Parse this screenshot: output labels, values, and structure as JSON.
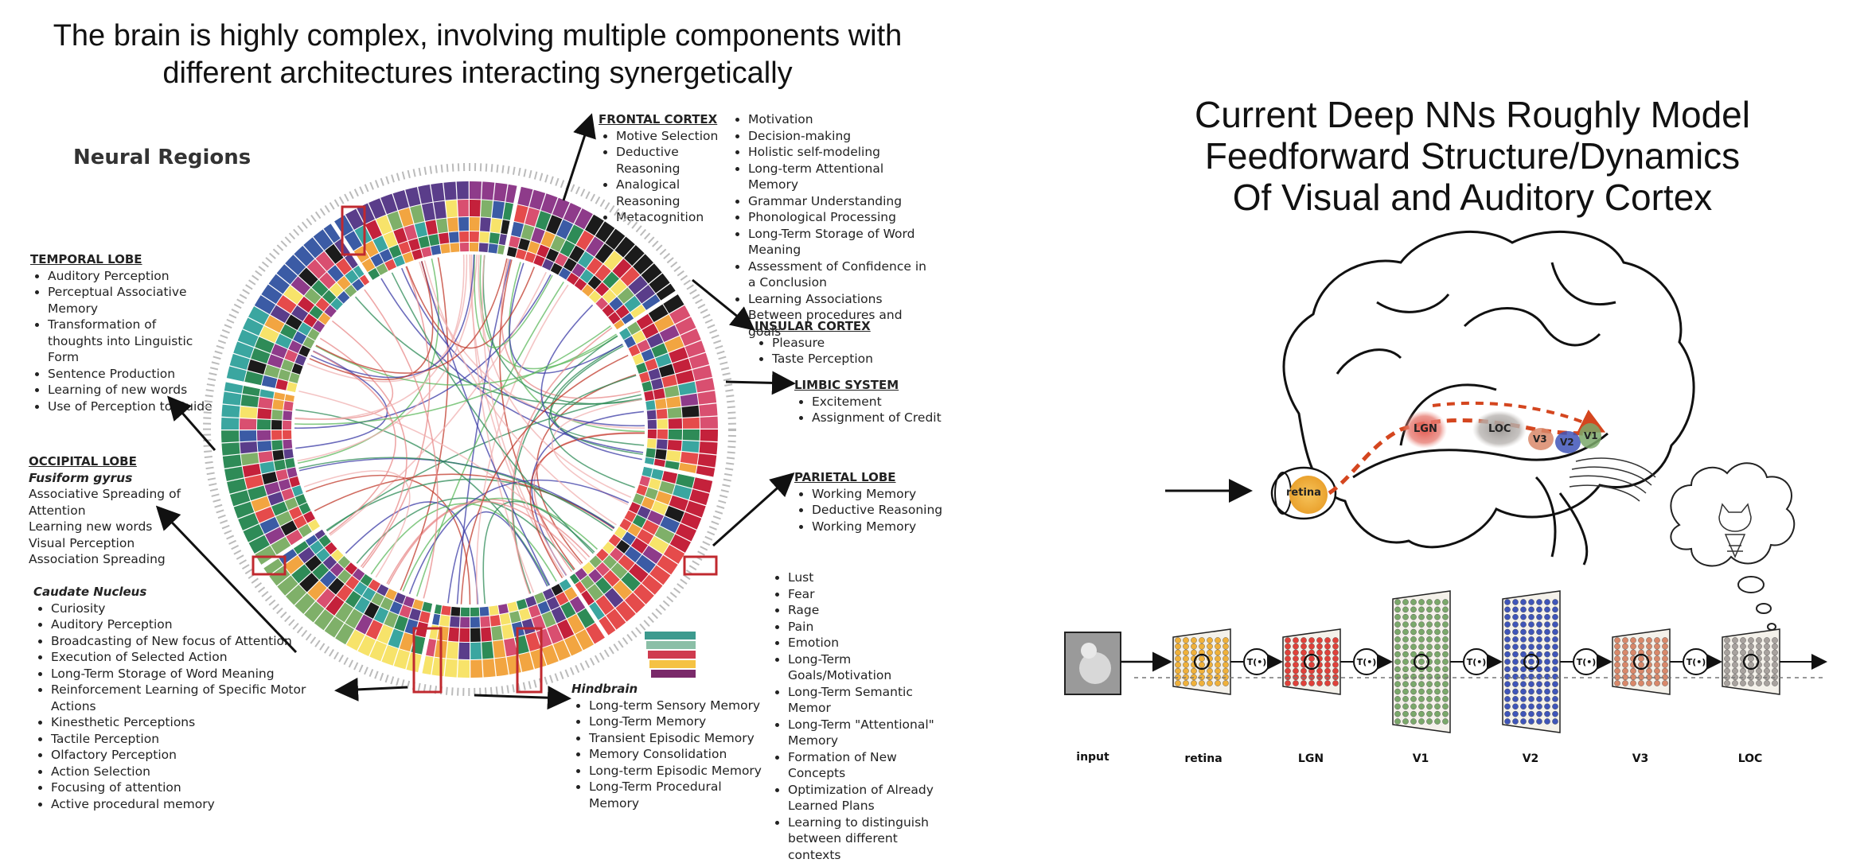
{
  "left_title": {
    "line1": "The brain is highly complex, involving multiple components with",
    "line2": "different architectures interacting synergetically"
  },
  "right_title": {
    "line1": "Current Deep NNs Roughly Model",
    "line2": "Feedforward Structure/Dynamics",
    "line3": "Of Visual and Auditory Cortex"
  },
  "neural_regions_heading": "Neural Regions",
  "regions": {
    "frontal": {
      "heading": "FRONTAL CORTEX",
      "items_a": [
        "Motive Selection",
        "Deductive Reasoning",
        "Analogical Reasoning",
        "Metacognition"
      ],
      "items_b": [
        "Motivation",
        "Decision-making",
        "Holistic self-modeling",
        "Long-term Attentional Memory",
        "Grammar Understanding",
        "Phonological Processing",
        "Long-Term Storage of Word Meaning",
        "Assessment of Confidence in a Conclusion",
        "Learning Associations Between procedures and goals"
      ]
    },
    "insular": {
      "heading": "INSULAR CORTEX",
      "items": [
        "Pleasure",
        "Taste Perception"
      ]
    },
    "limbic": {
      "heading": "LIMBIC SYSTEM",
      "items": [
        "Excitement",
        "Assignment of Credit"
      ]
    },
    "parietal": {
      "heading": "PARIETAL LOBE",
      "items": [
        "Working Memory",
        "Deductive Reasoning",
        "Working Memory"
      ]
    },
    "temporal": {
      "heading": "TEMPORAL LOBE",
      "items": [
        "Auditory Perception",
        "Perceptual Associative Memory",
        "Transformation of thoughts into Linguistic Form",
        "Sentence Production",
        "Learning of new words",
        "Use of Perception to Guide"
      ]
    },
    "occipital": {
      "heading": "OCCIPITAL LOBE",
      "subheading": "Fusiform gyrus",
      "lines": [
        "Associative Spreading of Attention",
        "Learning new words",
        "Visual Perception",
        "Association Spreading"
      ]
    },
    "caudate": {
      "heading": "Caudate Nucleus",
      "items": [
        "Curiosity",
        "Auditory Perception",
        "Broadcasting of New focus of Attention",
        "Execution of Selected Action",
        "Long-Term Storage of Word Meaning",
        "Reinforcement Learning of Specific Motor Actions",
        "Kinesthetic Perceptions",
        "Tactile Perception",
        "Olfactory Perception",
        "Action Selection",
        "Focusing of attention",
        "Active procedural memory"
      ]
    },
    "hindbrain": {
      "heading": "Hindbrain",
      "items": [
        "Long-term Sensory Memory",
        "Long-Term Memory",
        "Transient Episodic Memory",
        "Memory Consolidation",
        "Long-term Episodic Memory",
        "Long-Term Procedural Memory"
      ]
    },
    "emotion": {
      "items": [
        "Lust",
        "Fear",
        "Rage",
        "Pain",
        "Emotion",
        "Long-Term Goals/Motivation",
        "Long-Term Semantic Memor",
        "Long-Term \"Attentional\" Memory",
        "Formation of New Concepts",
        "Optimization of Already Learned Plans",
        "Learning to distinguish between different contexts"
      ]
    }
  },
  "brain_labels": {
    "retina": "retina",
    "lgn": "LGN",
    "loc": "LOC",
    "v3": "V3",
    "v2": "V2",
    "v1": "V1"
  },
  "stages": [
    {
      "label": "input"
    },
    {
      "label": "retina"
    },
    {
      "label": "LGN"
    },
    {
      "label": "V1"
    },
    {
      "label": "V2"
    },
    {
      "label": "V3"
    },
    {
      "label": "LOC"
    }
  ],
  "transform_label": "T(•)",
  "colors": {
    "retina_fill": "#f0b13a",
    "lgn_fill": "#e0413a",
    "v1_fill": "#7aa86a",
    "v2_fill": "#3f55b8",
    "v3_fill": "#d9886a",
    "loc_fill": "#a8a29e",
    "pathway": "#d4461f"
  }
}
